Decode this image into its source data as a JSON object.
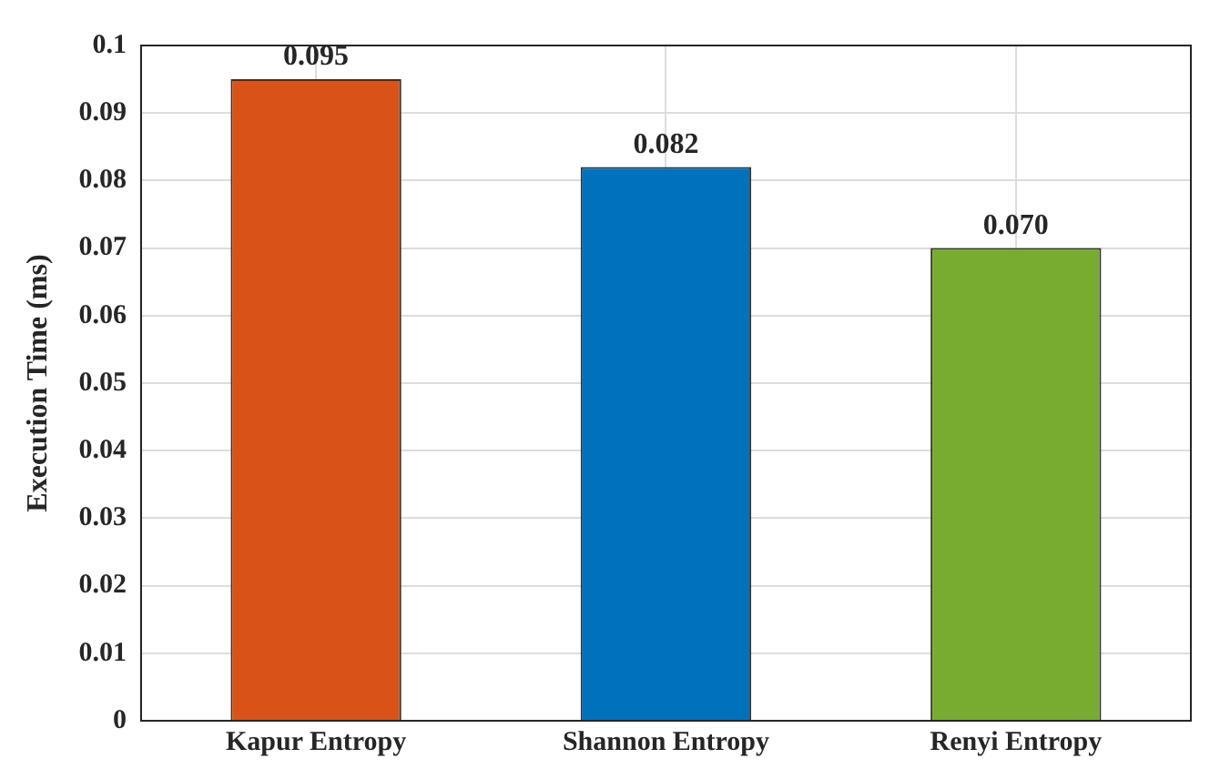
{
  "chart_data": {
    "type": "bar",
    "ylabel": "Execution Time (ms)",
    "categories": [
      "Kapur Entropy",
      "Shannon Entropy",
      "Renyi Entropy"
    ],
    "values": [
      0.095,
      0.082,
      0.07
    ],
    "value_labels": [
      "0.095",
      "0.082",
      "0.070"
    ],
    "colors": [
      "#d95319",
      "#0072bd",
      "#77ac30"
    ],
    "ylim": [
      0,
      0.1
    ],
    "yticks": [
      0,
      0.01,
      0.02,
      0.03,
      0.04,
      0.05,
      0.06,
      0.07,
      0.08,
      0.09,
      0.1
    ],
    "grid": true
  }
}
